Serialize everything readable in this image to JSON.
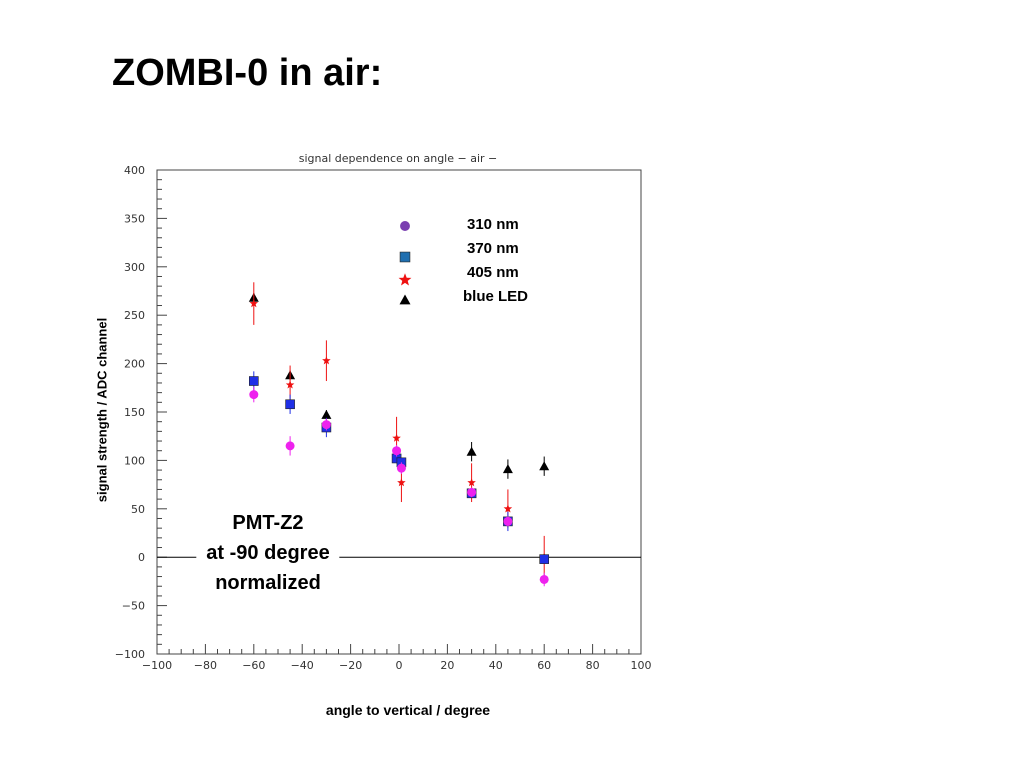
{
  "slide": {
    "title": "ZOMBI-0 in air:"
  },
  "chart_data": {
    "type": "scatter",
    "title": "signal dependence on angle − air −",
    "xlabel": "angle to vertical / degree",
    "ylabel": "signal strength / ADC channel",
    "xlim": [
      -100,
      100
    ],
    "ylim": [
      -100,
      400
    ],
    "x_ticks": [
      -100,
      -80,
      -60,
      -40,
      -20,
      0,
      20,
      40,
      60,
      80,
      100
    ],
    "y_ticks": [
      -100,
      -50,
      0,
      50,
      100,
      150,
      200,
      250,
      300,
      350,
      400
    ],
    "grid": false,
    "legend_position": "top-center",
    "reference_line_y": 0,
    "annotation": [
      "PMT-Z2",
      "at -90 degree",
      "normalized"
    ],
    "series": [
      {
        "name": "310 nm",
        "marker": "circle",
        "color": "#ee22ee",
        "legend_color": "#7a3fb0",
        "points": [
          {
            "x": -60,
            "y": 168,
            "err": 8
          },
          {
            "x": -45,
            "y": 115,
            "err": 10
          },
          {
            "x": -30,
            "y": 137,
            "err": 6
          },
          {
            "x": -1,
            "y": 110,
            "err": 6
          },
          {
            "x": 1,
            "y": 92,
            "err": 6
          },
          {
            "x": 30,
            "y": 67,
            "err": 5
          },
          {
            "x": 45,
            "y": 37,
            "err": 5
          },
          {
            "x": 60,
            "y": -23,
            "err": 7
          }
        ]
      },
      {
        "name": "370 nm",
        "marker": "square",
        "color": "#1f2fe6",
        "legend_color": "#1f6fb0",
        "points": [
          {
            "x": -60,
            "y": 182,
            "err": 10
          },
          {
            "x": -45,
            "y": 158,
            "err": 10
          },
          {
            "x": -30,
            "y": 134,
            "err": 10
          },
          {
            "x": -1,
            "y": 102,
            "err": 5
          },
          {
            "x": 1,
            "y": 98,
            "err": 5
          },
          {
            "x": 30,
            "y": 66,
            "err": 4
          },
          {
            "x": 45,
            "y": 37,
            "err": 10
          },
          {
            "x": 60,
            "y": -2,
            "err": 5
          }
        ]
      },
      {
        "name": "405 nm",
        "marker": "star",
        "color": "#ee1111",
        "legend_color": "#ee1111",
        "points": [
          {
            "x": -60,
            "y": 262,
            "err": 22
          },
          {
            "x": -45,
            "y": 178,
            "err": 20
          },
          {
            "x": -30,
            "y": 203,
            "err": 21
          },
          {
            "x": -1,
            "y": 123,
            "err": 22
          },
          {
            "x": 1,
            "y": 77,
            "err": 20
          },
          {
            "x": 30,
            "y": 77,
            "err": 20
          },
          {
            "x": 45,
            "y": 50,
            "err": 20
          },
          {
            "x": 60,
            "y": 0,
            "err": 22
          }
        ]
      },
      {
        "name": "blue LED",
        "marker": "triangle",
        "color": "#000000",
        "legend_color": "#000000",
        "points": [
          {
            "x": -60,
            "y": 268,
            "err": 5
          },
          {
            "x": -45,
            "y": 188,
            "err": 5
          },
          {
            "x": -30,
            "y": 147,
            "err": 5
          },
          {
            "x": 30,
            "y": 109,
            "err": 10
          },
          {
            "x": 45,
            "y": 91,
            "err": 10
          },
          {
            "x": 60,
            "y": 94,
            "err": 10
          }
        ]
      }
    ]
  }
}
